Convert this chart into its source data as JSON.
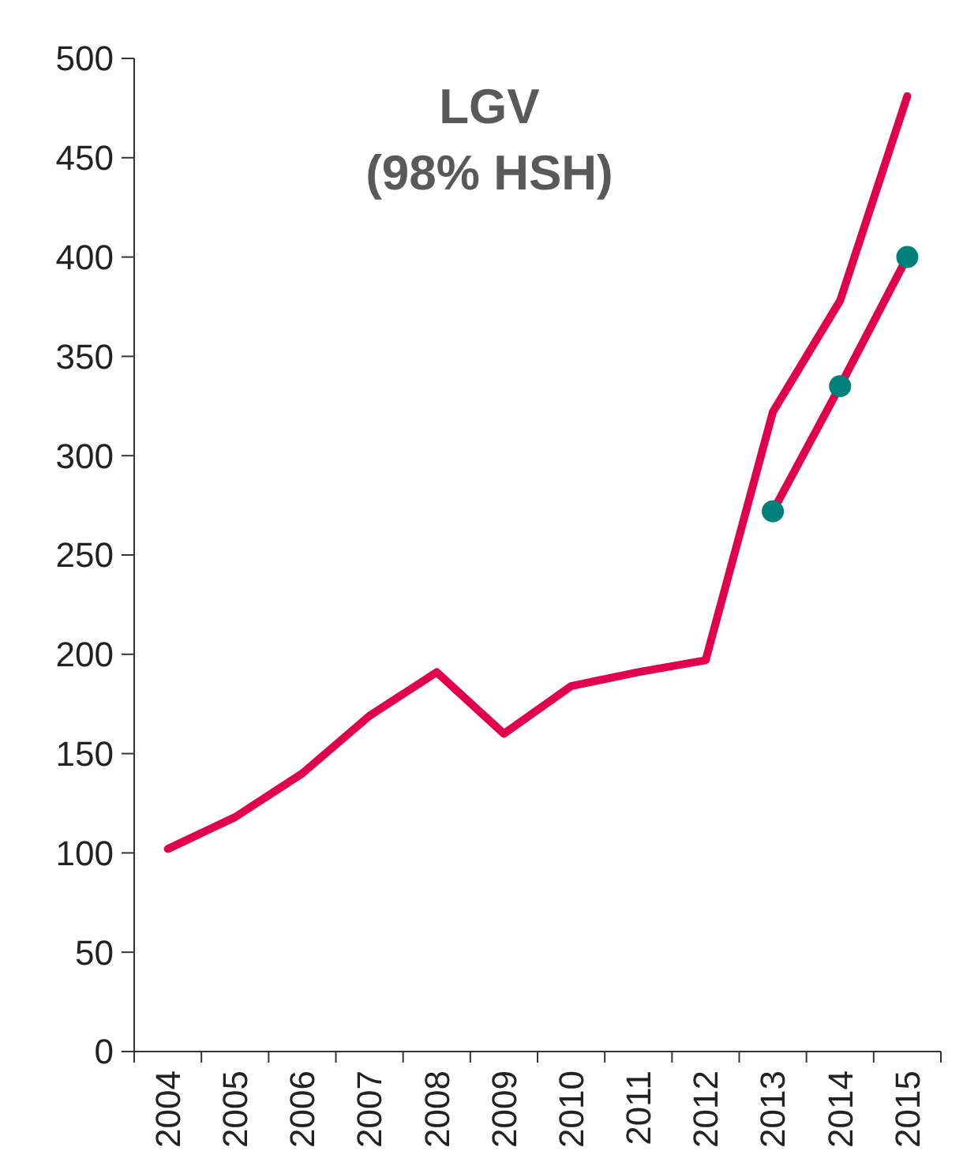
{
  "chart_data": {
    "type": "line",
    "title": "LGV",
    "subtitle": "(98% HSH)",
    "categories": [
      "2004",
      "2005",
      "2006",
      "2007",
      "2008",
      "2009",
      "2010",
      "2011",
      "2012",
      "2013",
      "2014",
      "2015"
    ],
    "series": [
      {
        "color": "#e0004d",
        "values": [
          102,
          118,
          140,
          169,
          191,
          160,
          184,
          191,
          197,
          322,
          378,
          481
        ]
      },
      {
        "color": "#e0004d",
        "colors": [
          null,
          null,
          null,
          null,
          null,
          null,
          null,
          null,
          null,
          "#00807a",
          "#00807a",
          "#00807a"
        ],
        "marker": "circle",
        "values": [
          null,
          null,
          null,
          null,
          null,
          null,
          null,
          null,
          null,
          272,
          335,
          400
        ]
      }
    ],
    "ylim": [
      0,
      500
    ],
    "yticks": [
      0,
      50,
      100,
      150,
      200,
      250,
      300,
      350,
      400,
      450,
      500
    ],
    "grid": false,
    "marker": "none",
    "line_style": "solid"
  }
}
